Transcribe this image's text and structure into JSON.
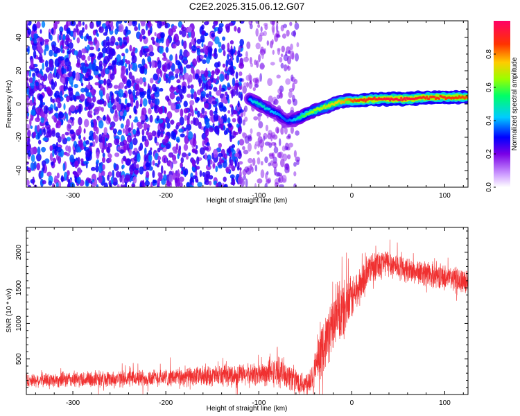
{
  "title": "C2E2.2025.315.06.12.G07",
  "chart_data": [
    {
      "type": "heatmap",
      "xlabel": "Height of straight line (km)",
      "ylabel": "Frequency (Hz)",
      "xlim": [
        -350,
        125
      ],
      "ylim": [
        -50,
        50
      ],
      "x_ticks": [
        -300,
        -200,
        -100,
        0,
        100
      ],
      "y_ticks": [
        -40,
        -20,
        0,
        20,
        40
      ],
      "colorbar": {
        "label": "Normalized spectral amplitude",
        "range": [
          0.0,
          1.0
        ],
        "ticks": [
          0.0,
          0.2,
          0.4,
          0.6,
          0.8
        ],
        "colors": [
          "#cc99ff",
          "#7a00e6",
          "#0000ff",
          "#00ccff",
          "#00ff66",
          "#99ff00",
          "#ffcc00",
          "#ff3300",
          "#ff0066"
        ]
      },
      "noise_region_x": [
        -350,
        -58
      ],
      "signal_ridge": {
        "x": [
          -110,
          -100,
          -90,
          -80,
          -70,
          -60,
          -55,
          -45,
          -35,
          -25,
          -15,
          -5,
          0,
          10,
          20,
          40,
          60,
          80,
          100,
          125
        ],
        "y": [
          3,
          0,
          -3,
          -6,
          -10,
          -9,
          -8,
          -5,
          -3,
          -1,
          1,
          2,
          2,
          2,
          3,
          3,
          3,
          4,
          4,
          4
        ],
        "amplitude": [
          0.35,
          0.45,
          0.4,
          0.35,
          0.3,
          0.4,
          0.5,
          0.6,
          0.65,
          0.7,
          0.75,
          0.8,
          0.85,
          0.9,
          0.9,
          0.95,
          0.95,
          0.9,
          0.9,
          0.85
        ]
      }
    },
    {
      "type": "line",
      "color": "#f03030",
      "xlabel": "Height of straight line (km)",
      "ylabel": "SNR (10 * v/v)",
      "xlim": [
        -350,
        125
      ],
      "ylim": [
        0,
        2350
      ],
      "x_ticks": [
        -300,
        -200,
        -100,
        0,
        100
      ],
      "y_ticks": [
        500,
        1000,
        1500,
        2000
      ],
      "trend": {
        "x": [
          -350,
          -300,
          -250,
          -200,
          -150,
          -100,
          -75,
          -60,
          -50,
          -40,
          -30,
          -20,
          -10,
          0,
          10,
          20,
          30,
          40,
          60,
          80,
          100,
          125
        ],
        "mean": [
          200,
          210,
          220,
          240,
          260,
          280,
          320,
          200,
          150,
          300,
          700,
          1000,
          1150,
          1350,
          1550,
          1800,
          1850,
          1850,
          1750,
          1700,
          1650,
          1600
        ],
        "spread": [
          90,
          110,
          110,
          120,
          140,
          160,
          200,
          180,
          160,
          250,
          350,
          400,
          420,
          300,
          260,
          220,
          200,
          190,
          170,
          170,
          170,
          160
        ]
      }
    }
  ]
}
